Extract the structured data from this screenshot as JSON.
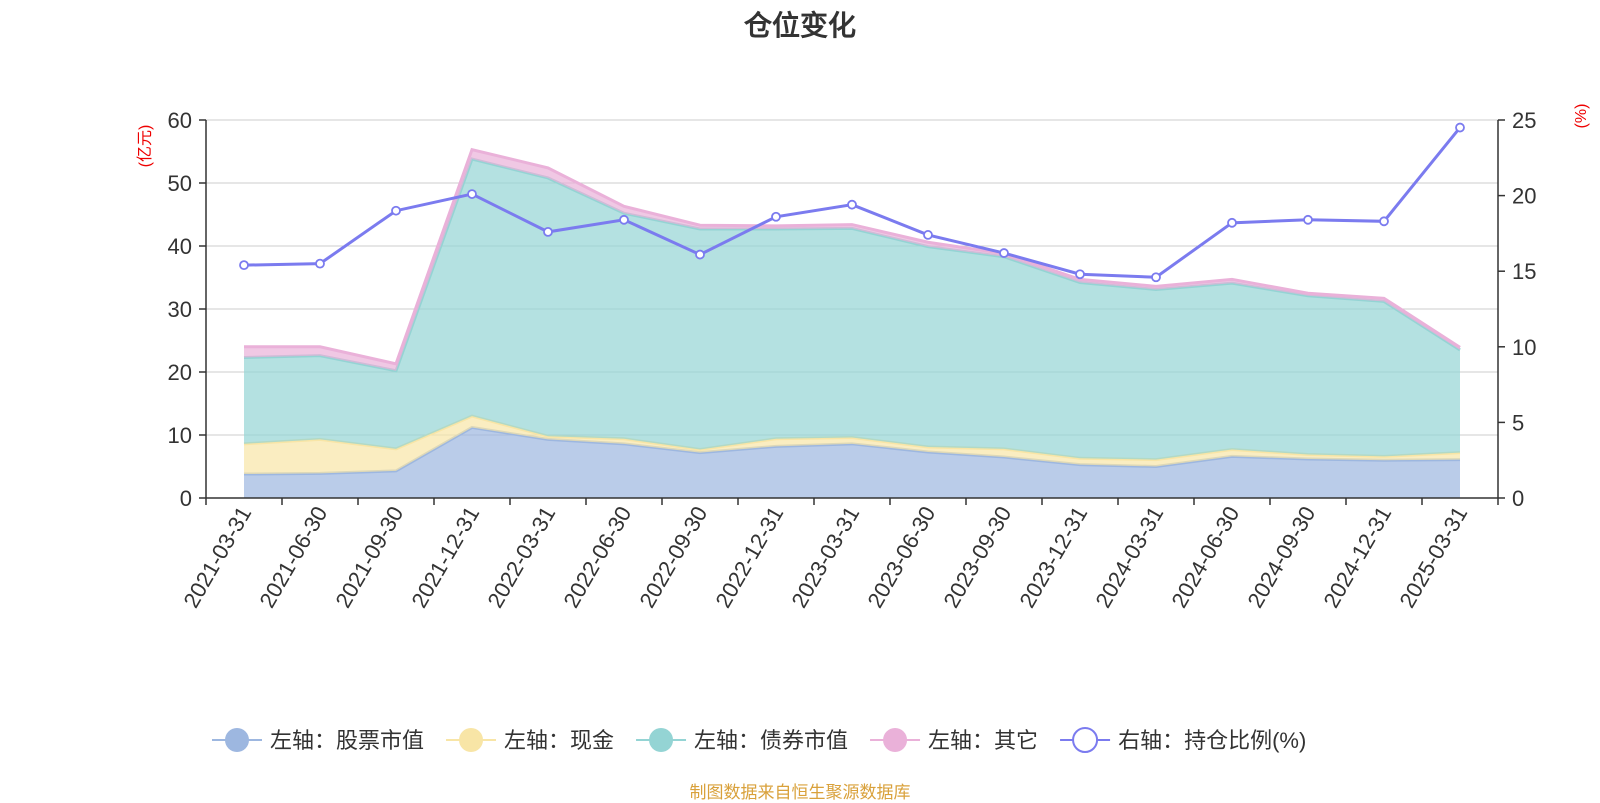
{
  "title": "仓位变化",
  "footer": "制图数据来自恒生聚源数据库",
  "chart_data": {
    "type": "area",
    "stacked": true,
    "title": "仓位变化",
    "x": [
      "2021-03-31",
      "2021-06-30",
      "2021-09-30",
      "2021-12-31",
      "2022-03-31",
      "2022-06-30",
      "2022-09-30",
      "2022-12-31",
      "2023-03-31",
      "2023-06-30",
      "2023-09-30",
      "2023-12-31",
      "2024-03-31",
      "2024-06-30",
      "2024-09-30",
      "2024-12-31",
      "2025-03-31"
    ],
    "left_axis": {
      "label": "(亿元)",
      "ylim": [
        0,
        60
      ],
      "ticks": [
        0,
        10,
        20,
        30,
        40,
        50,
        60
      ]
    },
    "right_axis": {
      "label": "(%)",
      "ylim": [
        0,
        25
      ],
      "ticks": [
        0,
        5,
        10,
        15,
        20,
        25
      ]
    },
    "series": [
      {
        "name": "左轴：股票市值",
        "axis": "left",
        "kind": "area",
        "color": "#9db7e0",
        "values": [
          3.8,
          3.9,
          4.3,
          11.2,
          9.3,
          8.6,
          7.2,
          8.2,
          8.6,
          7.3,
          6.5,
          5.3,
          5.0,
          6.6,
          6.2,
          6.0,
          6.1
        ]
      },
      {
        "name": "左轴：现金",
        "axis": "left",
        "kind": "area",
        "color": "#f8e5a6",
        "values": [
          4.8,
          5.4,
          3.5,
          1.8,
          0.5,
          0.8,
          0.5,
          1.2,
          1.0,
          0.8,
          1.3,
          1.0,
          1.1,
          1.1,
          0.7,
          0.6,
          1.1
        ]
      },
      {
        "name": "左轴：债券市值",
        "axis": "left",
        "kind": "area",
        "color": "#94d4d4",
        "values": [
          13.7,
          13.3,
          12.4,
          40.8,
          41.0,
          35.8,
          35.0,
          33.3,
          33.2,
          31.8,
          30.5,
          27.9,
          27.0,
          26.4,
          25.2,
          24.6,
          16.3
        ]
      },
      {
        "name": "左轴：其它",
        "axis": "left",
        "kind": "area",
        "color": "#eab1d9",
        "values": [
          1.7,
          1.4,
          1.1,
          1.5,
          1.6,
          1.1,
          0.6,
          0.5,
          0.6,
          0.7,
          0.5,
          0.5,
          0.5,
          0.6,
          0.4,
          0.5,
          0.4
        ]
      },
      {
        "name": "右轴：持仓比例(%)",
        "axis": "right",
        "kind": "line",
        "color": "#7b7bef",
        "values": [
          15.4,
          15.5,
          19.0,
          20.1,
          17.6,
          18.4,
          16.1,
          18.6,
          19.4,
          17.4,
          16.2,
          14.8,
          14.6,
          18.2,
          18.4,
          18.3,
          24.5
        ]
      }
    ],
    "legend_position": "bottom",
    "grid": true
  }
}
